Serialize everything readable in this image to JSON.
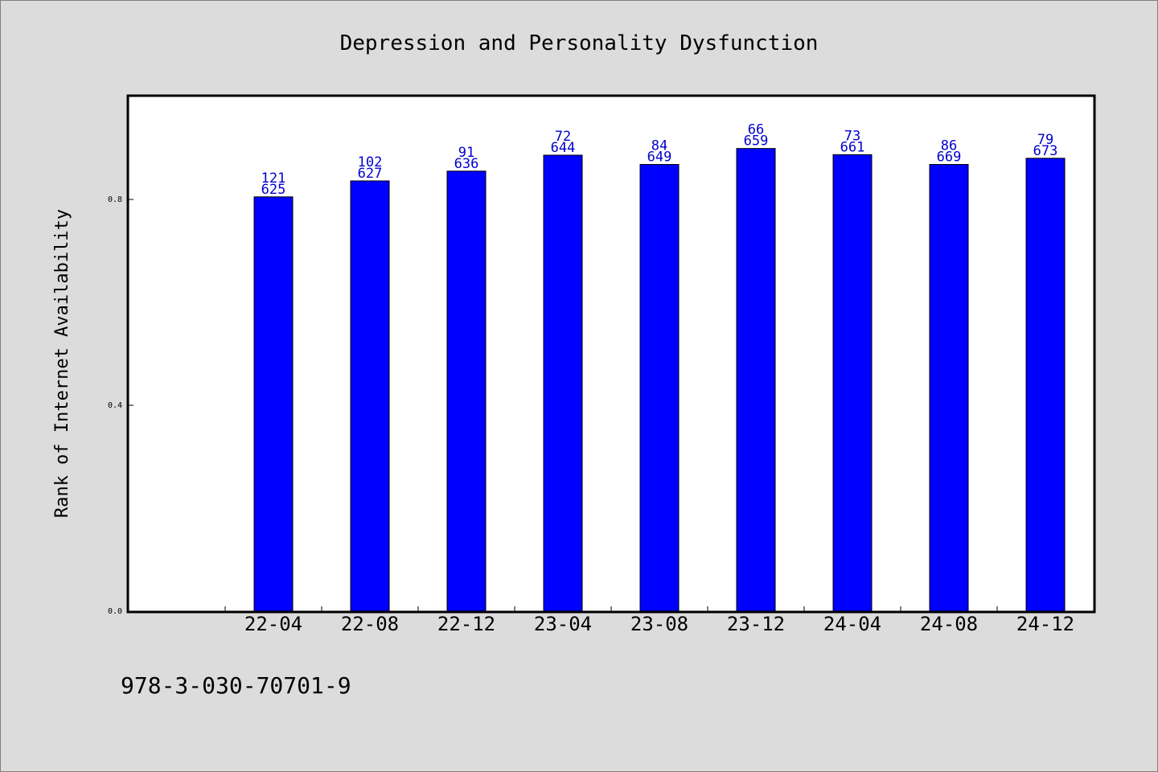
{
  "chart_data": {
    "type": "bar",
    "title": "Depression and Personality Dysfunction",
    "xlabel": "",
    "ylabel": "Rank of Internet Availability",
    "categories": [
      "22-04",
      "22-08",
      "22-12",
      "23-04",
      "23-08",
      "23-12",
      "24-04",
      "24-08",
      "24-12"
    ],
    "values": [
      0.805,
      0.836,
      0.855,
      0.886,
      0.868,
      0.899,
      0.887,
      0.868,
      0.88
    ],
    "labels_top": [
      "121",
      "102",
      "91",
      "72",
      "84",
      "66",
      "73",
      "86",
      "79"
    ],
    "labels_bottom": [
      "625",
      "627",
      "636",
      "644",
      "649",
      "659",
      "661",
      "669",
      "673"
    ],
    "yticks": [
      "0.0",
      "0.4",
      "0.8"
    ],
    "ylim": [
      0,
      1.0
    ],
    "grid": false,
    "legend": "none",
    "bar_color": "#0000ff",
    "label_color": "#0000cc"
  },
  "footer": {
    "text": "978-3-030-70701-9"
  }
}
